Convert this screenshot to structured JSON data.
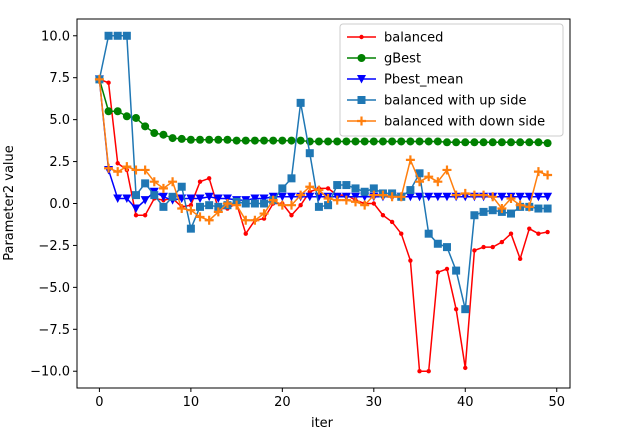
{
  "chart_data": {
    "type": "line",
    "title": "",
    "xlabel": "iter",
    "ylabel": "Parameter2 value",
    "xlim": [
      -2.45,
      51.45
    ],
    "ylim": [
      -11.0,
      11.0
    ],
    "xticks": [
      0,
      10,
      20,
      30,
      40,
      50
    ],
    "yticks": [
      -10.0,
      -7.5,
      -5.0,
      -2.5,
      0.0,
      2.5,
      5.0,
      7.5,
      10.0
    ],
    "xtick_labels": [
      "0",
      "10",
      "20",
      "30",
      "40",
      "50"
    ],
    "ytick_labels": [
      "−10.0",
      "−7.5",
      "−5.0",
      "−2.5",
      "0.0",
      "2.5",
      "5.0",
      "7.5",
      "10.0"
    ],
    "grid": false,
    "legend_position": "top-right",
    "x": [
      0,
      1,
      2,
      3,
      4,
      5,
      6,
      7,
      8,
      9,
      10,
      11,
      12,
      13,
      14,
      15,
      16,
      17,
      18,
      19,
      20,
      21,
      22,
      23,
      24,
      25,
      26,
      27,
      28,
      29,
      30,
      31,
      32,
      33,
      34,
      35,
      36,
      37,
      38,
      39,
      40,
      41,
      42,
      43,
      44,
      45,
      46,
      47,
      48,
      49
    ],
    "series": [
      {
        "name": "balanced",
        "color": "#ff0000",
        "marker": "point",
        "values": [
          7.4,
          7.2,
          2.4,
          2.0,
          -0.7,
          -0.7,
          0.3,
          0.2,
          0.3,
          -0.2,
          -0.1,
          1.3,
          1.5,
          -0.3,
          -0.3,
          0.0,
          -1.8,
          -1.0,
          -0.9,
          0.0,
          0.0,
          -0.7,
          -0.1,
          0.7,
          0.9,
          0.9,
          0.5,
          0.5,
          0.2,
          0.0,
          0.0,
          -0.7,
          -1.1,
          -1.8,
          -3.4,
          -10.0,
          -10.0,
          -4.1,
          -3.9,
          -6.3,
          -9.8,
          -2.8,
          -2.6,
          -2.6,
          -2.3,
          -1.8,
          -3.3,
          -1.5,
          -1.8,
          -1.7
        ]
      },
      {
        "name": "gBest",
        "color": "#008000",
        "marker": "circle",
        "values": [
          7.4,
          5.5,
          5.5,
          5.2,
          5.1,
          4.6,
          4.2,
          4.1,
          3.9,
          3.85,
          3.8,
          3.8,
          3.8,
          3.8,
          3.8,
          3.75,
          3.75,
          3.75,
          3.75,
          3.75,
          3.75,
          3.75,
          3.75,
          3.7,
          3.7,
          3.7,
          3.7,
          3.7,
          3.7,
          3.7,
          3.7,
          3.7,
          3.7,
          3.7,
          3.7,
          3.7,
          3.7,
          3.7,
          3.65,
          3.65,
          3.65,
          3.65,
          3.65,
          3.65,
          3.65,
          3.65,
          3.65,
          3.65,
          3.65,
          3.6
        ]
      },
      {
        "name": "Pbest_mean",
        "color": "#0000ff",
        "marker": "triangle-down",
        "values": [
          7.4,
          2.0,
          0.3,
          0.3,
          -0.3,
          0.2,
          0.7,
          0.4,
          0.2,
          0.3,
          0.3,
          0.3,
          0.4,
          0.3,
          0.3,
          0.2,
          0.2,
          0.3,
          0.3,
          0.4,
          0.4,
          0.4,
          0.4,
          0.4,
          0.4,
          0.4,
          0.4,
          0.4,
          0.4,
          0.4,
          0.4,
          0.4,
          0.4,
          0.4,
          0.4,
          0.4,
          0.4,
          0.4,
          0.4,
          0.4,
          0.4,
          0.4,
          0.4,
          0.4,
          0.4,
          0.4,
          0.4,
          0.4,
          0.4,
          0.4
        ]
      },
      {
        "name": "balanced with up side",
        "color": "#1f77b4",
        "marker": "square",
        "values": [
          7.4,
          10.0,
          10.0,
          10.0,
          0.5,
          1.2,
          0.5,
          -0.2,
          0.4,
          1.0,
          -1.5,
          -0.2,
          -0.1,
          -0.2,
          -0.1,
          0.1,
          0.0,
          0.0,
          0.0,
          0.2,
          0.9,
          1.5,
          6.0,
          3.0,
          -0.2,
          -0.1,
          1.1,
          1.1,
          0.9,
          0.7,
          0.9,
          0.6,
          0.6,
          0.4,
          0.8,
          1.8,
          -1.8,
          -2.4,
          -2.6,
          -4.0,
          -6.3,
          -0.7,
          -0.5,
          -0.4,
          -0.5,
          -0.6,
          -0.2,
          -0.2,
          -0.3,
          -0.3
        ]
      },
      {
        "name": "balanced with down side",
        "color": "#ff7f0e",
        "marker": "plus",
        "values": [
          7.4,
          2.1,
          1.9,
          2.2,
          2.0,
          2.0,
          1.3,
          0.9,
          1.3,
          -0.3,
          -0.4,
          -0.8,
          -1.0,
          -0.5,
          0.0,
          -0.1,
          -1.0,
          -1.0,
          -0.6,
          0.2,
          -0.1,
          -0.1,
          0.5,
          1.0,
          0.8,
          0.3,
          0.2,
          0.2,
          0.1,
          -0.1,
          0.5,
          0.5,
          0.4,
          0.4,
          2.6,
          1.3,
          1.6,
          1.3,
          2.0,
          0.5,
          0.6,
          0.5,
          0.5,
          0.4,
          -0.3,
          0.3,
          -0.1,
          -0.2,
          1.9,
          1.7
        ]
      }
    ]
  }
}
